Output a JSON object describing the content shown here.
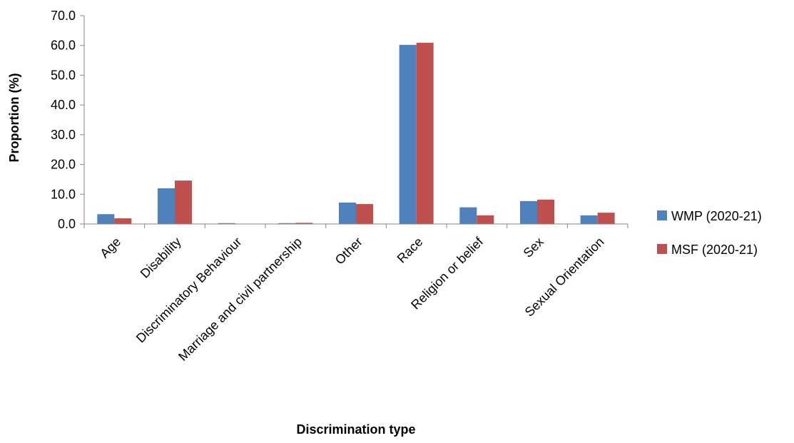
{
  "chart_data": {
    "type": "bar",
    "title": "",
    "xlabel": "Discrimination type",
    "ylabel": "Proportion (%)",
    "ylim": [
      0,
      70
    ],
    "ytick_step": 10,
    "ytick_format": "0.0",
    "grid": false,
    "legend_position": "right",
    "categories": [
      "Age",
      "Disability",
      "Discriminatory Behaviour",
      "Marriage and civil partnership",
      "Other",
      "Race",
      "Religion or belief",
      "Sex",
      "Sexual Orientation"
    ],
    "series": [
      {
        "name": "WMP (2020-21)",
        "color": "#4F81BD",
        "values": [
          3.3,
          12.0,
          0.3,
          0.3,
          7.2,
          60.2,
          5.6,
          7.7,
          2.9
        ]
      },
      {
        "name": "MSF (2020-21)",
        "color": "#C0504D",
        "values": [
          1.9,
          14.6,
          0.0,
          0.4,
          6.7,
          60.9,
          2.9,
          8.2,
          3.8
        ]
      }
    ]
  }
}
